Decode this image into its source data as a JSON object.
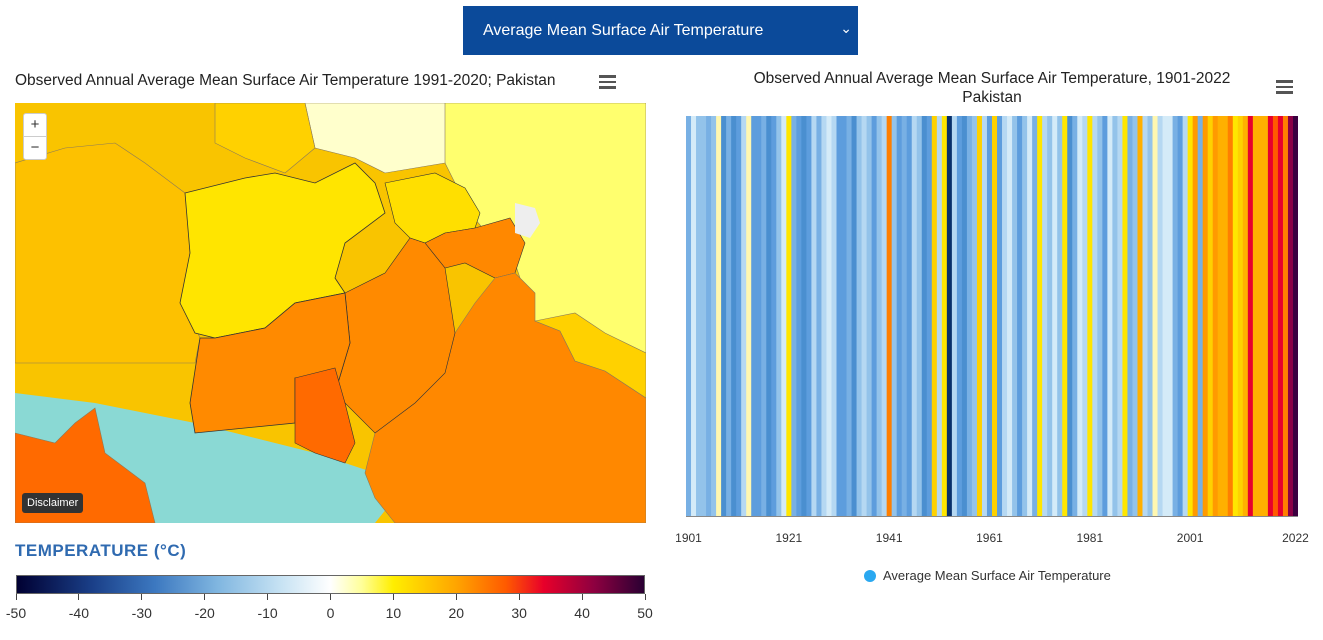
{
  "selector": {
    "value": "Average Mean Surface Air Temperature"
  },
  "map_panel": {
    "title": "Observed Annual Average Mean Surface Air Temperature 1991-2020; Pakistan",
    "zoom_in": "+",
    "zoom_out": "−",
    "disclaimer": "Disclaimer",
    "legend_title": "TEMPERATURE (°C)",
    "colorbar_labels": [
      "-50",
      "-40",
      "-30",
      "-20",
      "-10",
      "0",
      "10",
      "20",
      "30",
      "40",
      "50"
    ]
  },
  "stripes_panel": {
    "title_line1": "Observed Annual Average Mean Surface Air Temperature, 1901-2022",
    "title_line2": "Pakistan",
    "legend": "Average Mean Surface Air Temperature",
    "legend_color": "#2aa8f0"
  },
  "chart_data": {
    "type": "heatmap",
    "series": [
      {
        "name": "Average Mean Surface Air Temperature"
      }
    ],
    "x": {
      "start": 1901,
      "end": 2022,
      "ticks": [
        "1901",
        "1921",
        "1941",
        "1961",
        "1981",
        "2001",
        "2022"
      ]
    },
    "stripe_levels": [
      4,
      7,
      5,
      5,
      4,
      5,
      8,
      2,
      4,
      2,
      3,
      6,
      8,
      3,
      3,
      4,
      2,
      3,
      5,
      7,
      9,
      4,
      3,
      2,
      3,
      6,
      4,
      6,
      7,
      6,
      3,
      3,
      4,
      2,
      5,
      6,
      5,
      3,
      5,
      6,
      13,
      5,
      3,
      4,
      3,
      6,
      5,
      2,
      3,
      10,
      6,
      9,
      0,
      6,
      3,
      2,
      4,
      5,
      10,
      6,
      3,
      10,
      3,
      6,
      7,
      5,
      3,
      5,
      7,
      4,
      9,
      6,
      5,
      7,
      5,
      9,
      2,
      4,
      7,
      6,
      9,
      6,
      5,
      3,
      7,
      5,
      6,
      9,
      4,
      5,
      11,
      6,
      5,
      8,
      6,
      7,
      7,
      4,
      3,
      6,
      9,
      12,
      4,
      12,
      10,
      12,
      11,
      11,
      13,
      9,
      10,
      11,
      15,
      11,
      11,
      11,
      15,
      14,
      15,
      13,
      16,
      17
    ],
    "colors_note": "level 0 = coldest (dark navy) ... 17 = warmest (dark purple)"
  }
}
